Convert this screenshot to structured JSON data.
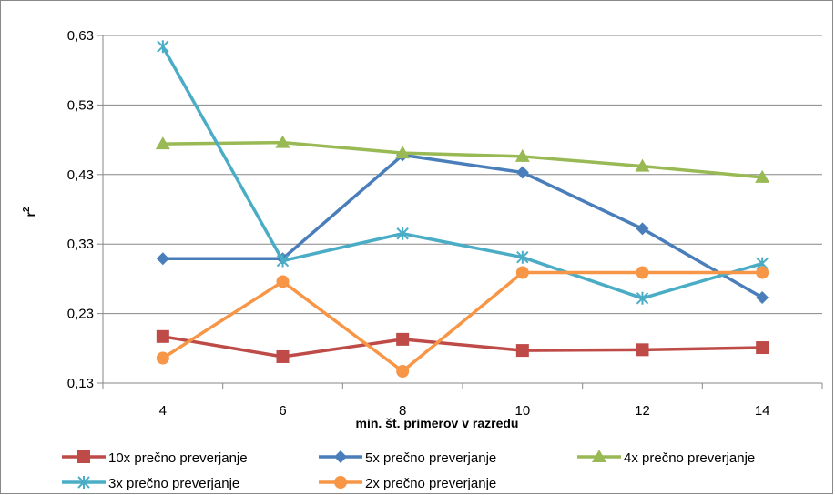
{
  "chart_data": {
    "type": "line",
    "title": "",
    "xlabel": "min. št. primerov v razredu",
    "ylabel": "r",
    "ylabel_superscript": "2",
    "categories": [
      "4",
      "6",
      "8",
      "10",
      "12",
      "14"
    ],
    "ylim": [
      0.13,
      0.63
    ],
    "yticks": [
      "0,63",
      "0,53",
      "0,43",
      "0,33",
      "0,23",
      "0,13"
    ],
    "ytick_values": [
      0.63,
      0.53,
      0.43,
      0.33,
      0.23,
      0.13
    ],
    "grid": "horizontal",
    "legend_position": "bottom",
    "series": [
      {
        "name": "10x prečno preverjanje",
        "color": "#be4b48",
        "marker": "square",
        "values": [
          0.197,
          0.168,
          0.193,
          0.177,
          0.178,
          0.181
        ]
      },
      {
        "name": "5x prečno preverjanje",
        "color": "#4a7ebb",
        "marker": "diamond",
        "values": [
          0.309,
          0.309,
          0.458,
          0.433,
          0.352,
          0.253
        ]
      },
      {
        "name": "4x prečno preverjanje",
        "color": "#98b954",
        "marker": "triangle",
        "values": [
          0.474,
          0.476,
          0.461,
          0.456,
          0.442,
          0.426
        ]
      },
      {
        "name": "3x prečno preverjanje",
        "color": "#4bacc6",
        "marker": "star",
        "values": [
          0.614,
          0.306,
          0.345,
          0.311,
          0.252,
          0.302
        ]
      },
      {
        "name": "2x prečno preverjanje",
        "color": "#f79646",
        "marker": "circle",
        "values": [
          0.166,
          0.276,
          0.147,
          0.289,
          0.289,
          0.289
        ]
      }
    ]
  }
}
